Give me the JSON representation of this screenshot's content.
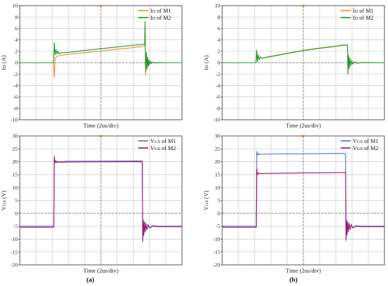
{
  "chart_data": [
    {
      "id": "a-current",
      "type": "line",
      "panel": "a",
      "xlabel": "Time (2us/div)",
      "ylabel": "ID (A)",
      "ylim": [
        -10,
        10
      ],
      "xlim": [
        0,
        10
      ],
      "grid": true,
      "legend_position": "top-right",
      "x_tick_labels": [],
      "y_ticks": [
        -10,
        -8,
        -6,
        -4,
        -2,
        0,
        2,
        4,
        6,
        8,
        10
      ],
      "series": [
        {
          "name": "ID of M1",
          "color": "#f08a24",
          "x": [
            0,
            2.08,
            2.13,
            2.18,
            2.28,
            2.45,
            2.7,
            3.0,
            4.0,
            5.0,
            6.0,
            7.0,
            7.45,
            7.7,
            7.72,
            7.76,
            7.8,
            7.84,
            7.88,
            7.92,
            7.96,
            8.0,
            8.06,
            8.12,
            8.2,
            8.35,
            8.6,
            9.0,
            10
          ],
          "y": [
            0,
            0,
            -2.6,
            0.8,
            1.1,
            1.25,
            1.35,
            1.45,
            1.75,
            2.05,
            2.35,
            2.65,
            2.8,
            2.9,
            6.4,
            -2.2,
            1.6,
            -1.2,
            0.9,
            -0.7,
            0.5,
            -0.35,
            0.25,
            -0.18,
            0.1,
            -0.05,
            0.02,
            0,
            0
          ]
        },
        {
          "name": "ID of M2",
          "color": "#1f9a2a",
          "x": [
            0,
            2.08,
            2.13,
            2.18,
            2.24,
            2.3,
            2.36,
            2.42,
            2.5,
            2.7,
            3.0,
            4.0,
            5.0,
            6.0,
            7.0,
            7.45,
            7.7,
            7.72,
            7.76,
            7.8,
            7.84,
            7.88,
            7.92,
            7.96,
            8.0,
            8.06,
            8.12,
            8.2,
            8.35,
            8.6,
            9.0,
            10
          ],
          "y": [
            0,
            0,
            3.5,
            1.4,
            2.3,
            1.5,
            2.0,
            1.55,
            1.7,
            1.75,
            1.8,
            2.15,
            2.45,
            2.75,
            3.05,
            3.15,
            3.25,
            7.2,
            -1.6,
            1.8,
            -1.0,
            1.0,
            -0.6,
            0.5,
            -0.35,
            0.25,
            -0.15,
            0.1,
            -0.05,
            0.02,
            0,
            0
          ]
        }
      ]
    },
    {
      "id": "b-current",
      "type": "line",
      "panel": "b",
      "xlabel": "Time (2us/div)",
      "ylabel": "ID (A)",
      "ylim": [
        -10,
        10
      ],
      "xlim": [
        0,
        10
      ],
      "grid": true,
      "legend_position": "top-right",
      "x_tick_labels": [],
      "y_ticks": [
        -10,
        -8,
        -6,
        -4,
        -2,
        0,
        2,
        4,
        6,
        8,
        10
      ],
      "series": [
        {
          "name": "ID of M1",
          "color": "#f08a24",
          "x": [
            0,
            2.08,
            2.12,
            2.17,
            2.22,
            2.28,
            2.35,
            2.45,
            2.6,
            3.0,
            4.0,
            5.0,
            6.0,
            7.0,
            7.45,
            7.72,
            7.75,
            7.79,
            7.83,
            7.87,
            7.92,
            7.98,
            8.05,
            8.15,
            8.3,
            8.6,
            10
          ],
          "y": [
            0,
            0,
            2.0,
            0.3,
            1.2,
            0.6,
            0.95,
            0.8,
            0.85,
            1.05,
            1.6,
            2.1,
            2.5,
            2.85,
            3.05,
            3.05,
            -1.8,
            1.1,
            -0.9,
            0.7,
            -0.5,
            0.35,
            -0.25,
            0.15,
            -0.08,
            0.02,
            0
          ]
        },
        {
          "name": "ID of M2",
          "color": "#1f9a2a",
          "x": [
            0,
            2.08,
            2.12,
            2.17,
            2.22,
            2.28,
            2.35,
            2.45,
            2.6,
            3.0,
            4.0,
            5.0,
            6.0,
            7.0,
            7.45,
            7.72,
            7.75,
            7.79,
            7.83,
            7.87,
            7.92,
            7.98,
            8.05,
            8.15,
            8.3,
            8.6,
            10
          ],
          "y": [
            0,
            0,
            2.2,
            0.2,
            1.4,
            0.5,
            1.05,
            0.75,
            0.9,
            1.1,
            1.65,
            2.15,
            2.55,
            2.9,
            3.1,
            3.1,
            -2.0,
            1.3,
            -1.0,
            0.8,
            -0.55,
            0.4,
            -0.25,
            0.15,
            -0.08,
            0.02,
            0
          ]
        }
      ]
    },
    {
      "id": "a-voltage",
      "type": "line",
      "panel": "a",
      "xlabel": "Time (2us/div)",
      "ylabel": "VGS (V)",
      "ylim": [
        -20,
        30
      ],
      "xlim": [
        0,
        10
      ],
      "grid": true,
      "legend_position": "top-right",
      "x_tick_labels": [],
      "y_ticks": [
        -20,
        -15,
        -10,
        -5,
        0,
        5,
        10,
        15,
        20,
        25,
        30
      ],
      "series": [
        {
          "name": "VGS of M1",
          "color": "#4a6fd4",
          "x": [
            0,
            2.1,
            2.13,
            2.16,
            2.2,
            2.25,
            2.3,
            2.4,
            3.0,
            7.0,
            7.55,
            7.58,
            7.61,
            7.64,
            7.68,
            7.72,
            7.77,
            7.83,
            7.9,
            8.0,
            8.2,
            8.5,
            10
          ],
          "y": [
            -5,
            -5,
            21.5,
            19.8,
            20.5,
            20.0,
            20.2,
            20.0,
            20.2,
            20.3,
            20.3,
            -10,
            -2.5,
            -8.0,
            -3.2,
            -7.0,
            -3.8,
            -6.3,
            -4.3,
            -5.6,
            -4.8,
            -5.0,
            -5.0
          ]
        },
        {
          "name": "VGS of M2",
          "color": "#a0186e",
          "x": [
            0,
            2.1,
            2.13,
            2.16,
            2.2,
            2.25,
            2.3,
            2.4,
            3.0,
            7.0,
            7.55,
            7.58,
            7.61,
            7.64,
            7.68,
            7.72,
            7.77,
            7.83,
            7.9,
            8.0,
            8.2,
            8.5,
            10
          ],
          "y": [
            -5.4,
            -5.4,
            22.2,
            19.5,
            20.2,
            19.7,
            19.9,
            19.8,
            19.9,
            20.0,
            20.0,
            -11,
            -3.0,
            -8.6,
            -3.5,
            -7.3,
            -4.0,
            -6.5,
            -4.5,
            -5.7,
            -5.0,
            -5.2,
            -5.2
          ]
        }
      ]
    },
    {
      "id": "b-voltage",
      "type": "line",
      "panel": "b",
      "xlabel": "Time (2us/div)",
      "ylabel": "VGS (V)",
      "ylim": [
        -20,
        30
      ],
      "xlim": [
        0,
        10
      ],
      "grid": true,
      "legend_position": "top-right",
      "x_tick_labels": [],
      "y_ticks": [
        -20,
        -15,
        -10,
        -5,
        0,
        5,
        10,
        15,
        20,
        25,
        30
      ],
      "series": [
        {
          "name": "VGS of M1",
          "color": "#4a6fd4",
          "x": [
            0,
            2.1,
            2.13,
            2.16,
            2.2,
            2.25,
            2.3,
            2.4,
            3.0,
            7.0,
            7.6,
            7.63,
            7.66,
            7.69,
            7.73,
            7.77,
            7.82,
            7.88,
            7.95,
            8.05,
            8.25,
            8.55,
            10
          ],
          "y": [
            -5,
            -5,
            24.0,
            22.5,
            23.2,
            22.8,
            23.0,
            22.9,
            23.0,
            23.2,
            23.2,
            -10,
            -2.5,
            -8.0,
            -3.2,
            -7.0,
            -3.8,
            -6.3,
            -4.3,
            -5.6,
            -4.8,
            -5.0,
            -5.0
          ]
        },
        {
          "name": "VGS of M2",
          "color": "#a0186e",
          "x": [
            0,
            2.1,
            2.13,
            2.16,
            2.2,
            2.25,
            2.3,
            2.4,
            3.0,
            7.0,
            7.6,
            7.63,
            7.66,
            7.69,
            7.73,
            7.77,
            7.82,
            7.88,
            7.95,
            8.05,
            8.25,
            8.55,
            10
          ],
          "y": [
            -5.4,
            -5.4,
            17.3,
            15.0,
            15.7,
            15.3,
            15.6,
            15.4,
            15.5,
            15.8,
            15.8,
            -10.5,
            -3.0,
            -8.4,
            -3.5,
            -7.2,
            -4.0,
            -6.4,
            -4.5,
            -5.7,
            -5.0,
            -5.2,
            -5.2
          ]
        }
      ]
    }
  ],
  "panel_labels": {
    "a": "(a)",
    "b": "(b)"
  },
  "colors": {
    "grid": "#c9c9c9",
    "frame": "#444444",
    "trigger_marker": "#e06a2a"
  }
}
